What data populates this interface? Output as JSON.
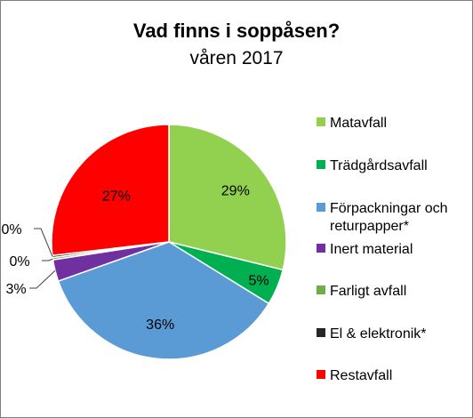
{
  "chart_data": {
    "type": "pie",
    "title": "Vad finns i soppåsen?",
    "subtitle": "våren 2017",
    "categories": [
      "Matavfall",
      "Trädgårdsavfall",
      "Förpackningar och returpapper*",
      "Inert material",
      "Farligt avfall",
      "El & elektronik*",
      "Restavfall"
    ],
    "legend_lines": [
      [
        "Matavfall"
      ],
      [
        "Trädgårdsavfall"
      ],
      [
        "Förpackningar och",
        "returpapper*"
      ],
      [
        "Inert material"
      ],
      [
        "Farligt avfall"
      ],
      [
        "El & elektronik*"
      ],
      [
        "Restavfall"
      ]
    ],
    "values": [
      29,
      5,
      36,
      3,
      0.3,
      0.3,
      27
    ],
    "data_labels": [
      "29%",
      "5%",
      "36%",
      "3%",
      "0%",
      "0%",
      "27%"
    ],
    "colors": [
      "#92d050",
      "#00b050",
      "#5b9bd5",
      "#7030a0",
      "#70ad47",
      "#262626",
      "#ff0000"
    ],
    "legend_position": "right"
  }
}
